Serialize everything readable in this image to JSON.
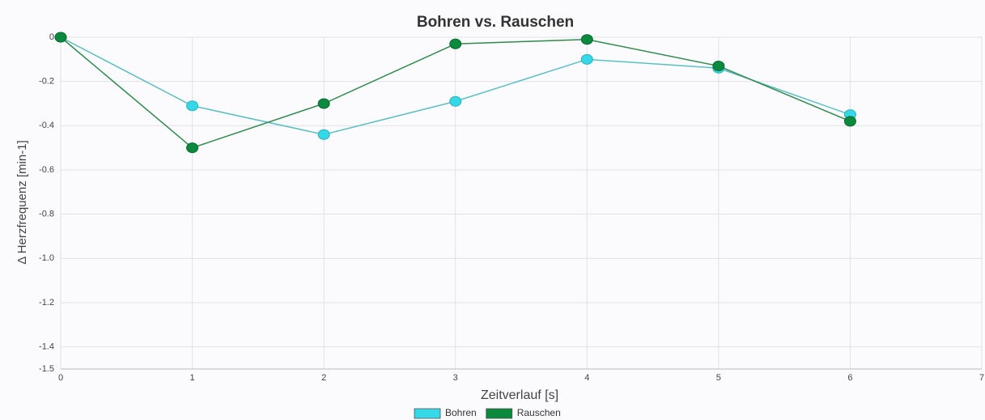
{
  "chart_data": {
    "type": "line",
    "title": "Bohren vs. Rauschen",
    "xlabel": "Zeitverlauf [s]",
    "ylabel": "Δ Herzfrequenz [min-1]",
    "x": [
      0,
      1,
      2,
      3,
      4,
      5,
      6
    ],
    "series": [
      {
        "name": "Bohren",
        "color": "#35d8e6",
        "line_color": "#5bbfc4",
        "values": [
          0,
          -0.31,
          -0.44,
          -0.29,
          -0.1,
          -0.14,
          -0.35
        ]
      },
      {
        "name": "Rauschen",
        "color": "#0b8a3e",
        "line_color": "#2e8a4e",
        "values": [
          0,
          -0.5,
          -0.3,
          -0.03,
          -0.01,
          -0.13,
          -0.38
        ]
      }
    ],
    "xlim": [
      0,
      7
    ],
    "xticks": [
      0,
      1,
      2,
      3,
      4,
      5,
      6,
      7
    ],
    "ylim": [
      -1.5,
      0
    ],
    "yticks": [
      0,
      -0.2,
      -0.4,
      -0.6,
      -0.8,
      {
        "value": -1,
        "label": "-1.0"
      },
      -1.2,
      -1.4,
      -1.5
    ],
    "grid": true,
    "legend": "bottom"
  }
}
